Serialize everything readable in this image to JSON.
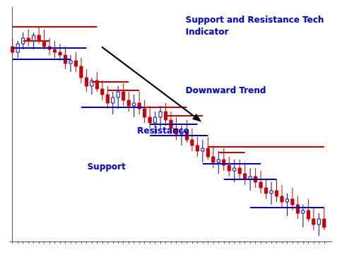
{
  "chart_data": {
    "type": "candlestick",
    "x": [
      0,
      1,
      2,
      3,
      4,
      5,
      6,
      7,
      8,
      9,
      10,
      11,
      12,
      13,
      14,
      15,
      16,
      17,
      18,
      19,
      20,
      21,
      22,
      23,
      24,
      25,
      26,
      27,
      28,
      29,
      30,
      31,
      32,
      33,
      34,
      35,
      36,
      37,
      38,
      39,
      40,
      41,
      42,
      43,
      44,
      45,
      46,
      47,
      48,
      49,
      50,
      51,
      52,
      53,
      54,
      55,
      56,
      57,
      58,
      59
    ],
    "open": [
      104,
      102,
      105,
      107,
      106,
      108,
      106,
      104,
      103,
      102,
      101,
      98,
      99,
      97,
      93,
      90,
      92,
      89,
      87,
      84,
      86,
      88,
      85,
      83,
      84,
      82,
      79,
      77,
      79,
      81,
      78,
      75,
      73,
      74,
      71,
      69,
      67,
      68,
      65,
      63,
      64,
      62,
      60,
      61,
      59,
      57,
      58,
      56,
      54,
      52,
      53,
      51,
      49,
      50,
      48,
      45,
      46,
      43,
      41,
      43
    ],
    "high": [
      107,
      106,
      109,
      110,
      109,
      111,
      110,
      107,
      106,
      105,
      104,
      101,
      102,
      100,
      96,
      93,
      95,
      92,
      90,
      88,
      90,
      91,
      88,
      87,
      88,
      85,
      83,
      81,
      83,
      84,
      81,
      79,
      76,
      78,
      75,
      72,
      71,
      72,
      69,
      67,
      68,
      65,
      64,
      64,
      63,
      61,
      61,
      60,
      57,
      56,
      57,
      55,
      52,
      54,
      51,
      48,
      50,
      47,
      45,
      47
    ],
    "low": [
      101,
      100,
      103,
      104,
      103,
      105,
      103,
      101,
      100,
      99,
      96,
      95,
      95,
      91,
      88,
      87,
      88,
      85,
      82,
      80,
      82,
      83,
      81,
      79,
      80,
      77,
      75,
      73,
      75,
      76,
      73,
      71,
      69,
      70,
      67,
      65,
      63,
      64,
      61,
      59,
      60,
      58,
      56,
      57,
      55,
      53,
      54,
      52,
      50,
      48,
      49,
      47,
      44,
      46,
      43,
      40,
      42,
      39,
      37,
      39
    ],
    "close": [
      102,
      105,
      107,
      106,
      108,
      106,
      104,
      103,
      102,
      101,
      98,
      99,
      97,
      93,
      90,
      92,
      89,
      87,
      84,
      86,
      88,
      85,
      83,
      84,
      82,
      79,
      77,
      79,
      81,
      78,
      75,
      73,
      74,
      71,
      69,
      67,
      68,
      65,
      63,
      64,
      62,
      60,
      61,
      59,
      57,
      58,
      56,
      54,
      52,
      53,
      51,
      49,
      50,
      48,
      45,
      46,
      43,
      41,
      43,
      40
    ],
    "colors": [
      "#cc0000",
      "#0000cc",
      "#0000cc",
      "#cc0000",
      "#0000cc",
      "#cc0000",
      "#cc0000",
      "#cc0000",
      "#cc0000",
      "#cc0000",
      "#cc0000",
      "#0000cc",
      "#cc0000",
      "#cc0000",
      "#cc0000",
      "#0000cc",
      "#cc0000",
      "#cc0000",
      "#cc0000",
      "#0000cc",
      "#0000cc",
      "#cc0000",
      "#cc0000",
      "#0000cc",
      "#cc0000",
      "#cc0000",
      "#cc0000",
      "#0000cc",
      "#0000cc",
      "#cc0000",
      "#cc0000",
      "#cc0000",
      "#0000cc",
      "#cc0000",
      "#cc0000",
      "#cc0000",
      "#0000cc",
      "#cc0000",
      "#cc0000",
      "#0000cc",
      "#cc0000",
      "#cc0000",
      "#0000cc",
      "#cc0000",
      "#cc0000",
      "#0000cc",
      "#cc0000",
      "#cc0000",
      "#cc0000",
      "#0000cc",
      "#cc0000",
      "#cc0000",
      "#0000cc",
      "#cc0000",
      "#cc0000",
      "#0000cc",
      "#cc0000",
      "#cc0000",
      "#0000cc",
      "#cc0000"
    ],
    "support": {
      "color": "#0000cc",
      "levels": [
        {
          "x_start": 0,
          "x_end": 11,
          "y": 99.5
        },
        {
          "x_start": 0,
          "x_end": 14,
          "y": 103.5
        },
        {
          "x_start": 13,
          "x_end": 25,
          "y": 82.5
        },
        {
          "x_start": 26,
          "x_end": 37,
          "y": 72.5
        },
        {
          "x_start": 26,
          "x_end": 35,
          "y": 76.5
        },
        {
          "x_start": 36,
          "x_end": 47,
          "y": 62.5
        },
        {
          "x_start": 40,
          "x_end": 50,
          "y": 57.0
        },
        {
          "x_start": 45,
          "x_end": 59,
          "y": 47.0
        }
      ]
    },
    "resistance": {
      "color": "#cc0000",
      "levels": [
        {
          "x_start": 0,
          "x_end": 16,
          "y": 111.0
        },
        {
          "x_start": 2,
          "x_end": 7,
          "y": 106.0
        },
        {
          "x_start": 15,
          "x_end": 22,
          "y": 91.5
        },
        {
          "x_start": 18,
          "x_end": 24,
          "y": 88.5
        },
        {
          "x_start": 25,
          "x_end": 33,
          "y": 82.5
        },
        {
          "x_start": 29,
          "x_end": 36,
          "y": 79.5
        },
        {
          "x_start": 37,
          "x_end": 59,
          "y": 68.5
        },
        {
          "x_start": 39,
          "x_end": 44,
          "y": 66.5
        }
      ]
    },
    "annotations": [
      {
        "text": "Support and Resistance Tech\nIndicator",
        "color": "#0000cc"
      },
      {
        "text": "Downward Trend",
        "color": "#0000cc"
      },
      {
        "text": "Resistance",
        "color": "#0000cc"
      },
      {
        "text": "Support",
        "color": "#0000cc"
      }
    ],
    "xlim": [
      -0.5,
      60.5
    ],
    "ylim": [
      35,
      118
    ],
    "xticks": [
      0,
      1,
      2,
      3,
      4,
      5,
      6,
      7,
      8,
      9,
      10,
      11,
      12,
      13,
      14,
      15,
      16,
      17,
      18,
      19,
      20,
      21,
      22,
      23,
      24,
      25,
      26,
      27,
      28,
      29,
      30,
      31,
      32,
      33,
      34,
      35,
      36,
      37,
      38,
      39,
      40,
      41,
      42,
      43,
      44,
      45,
      46,
      47,
      48,
      49,
      50,
      51,
      52,
      53,
      54,
      55,
      56,
      57,
      58,
      59
    ],
    "yticks": [],
    "tick_labels": false,
    "grid": false
  }
}
